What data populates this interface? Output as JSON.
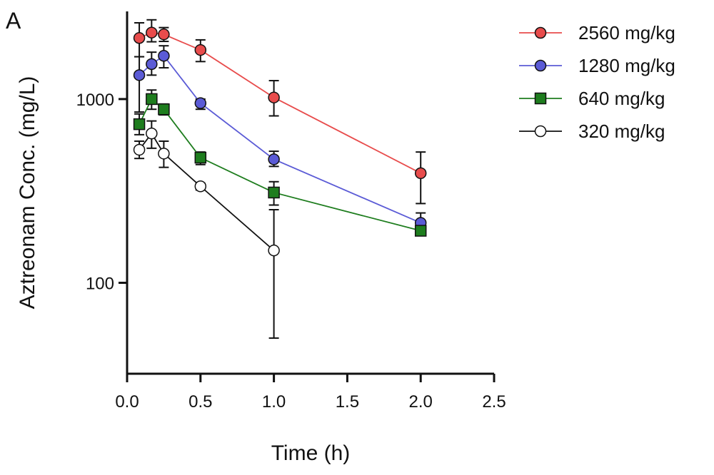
{
  "chart_data": {
    "type": "line",
    "panel_label": "A",
    "xlabel": "Time (h)",
    "ylabel": "Aztreonam Conc. (mg/L)",
    "x_scale": "linear",
    "y_scale": "log",
    "xlim": [
      0,
      2.5
    ],
    "ylim": [
      32,
      3000
    ],
    "x_ticks": [
      0,
      0.5,
      1.0,
      1.5,
      2.0,
      2.5
    ],
    "x_tick_labels": [
      "0.0",
      "0.5",
      "1.0",
      "1.5",
      "2.0",
      "2.5"
    ],
    "y_ticks": [
      100,
      1000
    ],
    "y_tick_labels": [
      "100",
      "1000"
    ],
    "grid": false,
    "legend_position": "top-right",
    "series": [
      {
        "name": "2560 mg/kg",
        "color": "#e84c4c",
        "marker": "circle",
        "marker_fill": "#e84c4c",
        "x": [
          0.083,
          0.167,
          0.25,
          0.5,
          1.0,
          2.0
        ],
        "y": [
          2150,
          2300,
          2250,
          1850,
          1020,
          395
        ],
        "err_low": [
          1700,
          2050,
          2060,
          1600,
          810,
          270
        ],
        "err_high": [
          2600,
          2700,
          2450,
          2100,
          1260,
          515
        ]
      },
      {
        "name": "1280 mg/kg",
        "color": "#5b5bd6",
        "marker": "circle",
        "marker_fill": "#5b5bd6",
        "x": [
          0.083,
          0.167,
          0.25,
          0.5,
          1.0,
          2.0
        ],
        "y": [
          1350,
          1550,
          1720,
          950,
          470,
          212
        ],
        "err_low": [
          850,
          1350,
          1480,
          880,
          430,
          188
        ],
        "err_high": [
          1700,
          1800,
          1950,
          1000,
          520,
          240
        ]
      },
      {
        "name": "640 mg/kg",
        "color": "#1e7d1e",
        "marker": "square",
        "marker_fill": "#1e7d1e",
        "x": [
          0.083,
          0.167,
          0.25,
          0.5,
          1.0,
          2.0
        ],
        "y": [
          730,
          1000,
          880,
          480,
          310,
          192
        ],
        "err_low": [
          640,
          880,
          820,
          440,
          265,
          185
        ],
        "err_high": [
          830,
          1120,
          940,
          515,
          355,
          200
        ]
      },
      {
        "name": "320 mg/kg",
        "color": "#111111",
        "marker": "circle",
        "marker_fill": "#ffffff",
        "x": [
          0.083,
          0.167,
          0.25,
          0.5,
          1.0
        ],
        "y": [
          530,
          650,
          505,
          335,
          150
        ],
        "err_low": [
          475,
          540,
          425,
          320,
          50
        ],
        "err_high": [
          590,
          760,
          590,
          348,
          250
        ]
      }
    ]
  }
}
